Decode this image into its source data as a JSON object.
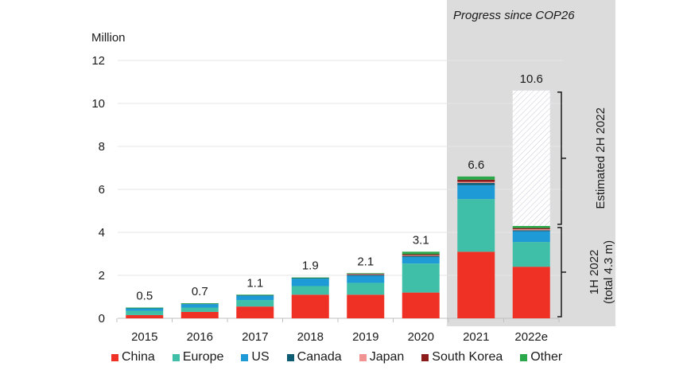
{
  "chart_data": {
    "type": "bar",
    "stacked": true,
    "title": "",
    "ylabel": "Million",
    "xlabel": "",
    "ylim": [
      0,
      12
    ],
    "yticks": [
      0,
      2,
      4,
      6,
      8,
      10,
      12
    ],
    "grid": true,
    "categories": [
      "2015",
      "2016",
      "2017",
      "2018",
      "2019",
      "2020",
      "2021",
      "2022e"
    ],
    "totals_labels": [
      "0.5",
      "0.7",
      "1.1",
      "1.9",
      "2.1",
      "3.1",
      "6.6",
      "10.6"
    ],
    "series": [
      {
        "name": "China",
        "color": "#ee3124",
        "values": [
          0.15,
          0.3,
          0.55,
          1.1,
          1.1,
          1.2,
          3.1,
          2.4
        ]
      },
      {
        "name": "Europe",
        "color": "#40bfa8",
        "values": [
          0.2,
          0.2,
          0.3,
          0.4,
          0.55,
          1.35,
          2.45,
          1.15
        ]
      },
      {
        "name": "US",
        "color": "#1e9ad6",
        "values": [
          0.12,
          0.16,
          0.2,
          0.35,
          0.33,
          0.3,
          0.65,
          0.5
        ]
      },
      {
        "name": "Canada",
        "color": "#0e5c73",
        "values": [
          0.02,
          0.03,
          0.03,
          0.04,
          0.05,
          0.05,
          0.1,
          0.05
        ]
      },
      {
        "name": "Japan",
        "color": "#f19393",
        "values": [
          0.0,
          0.0,
          0.0,
          0.0,
          0.02,
          0.03,
          0.05,
          0.05
        ]
      },
      {
        "name": "South Korea",
        "color": "#8b1a1a",
        "values": [
          0.0,
          0.0,
          0.0,
          0.0,
          0.03,
          0.05,
          0.1,
          0.05
        ]
      },
      {
        "name": "Other",
        "color": "#2aa84a",
        "values": [
          0.01,
          0.01,
          0.02,
          0.01,
          0.02,
          0.12,
          0.15,
          0.1
        ]
      },
      {
        "name": "Estimated 2H 2022",
        "pattern": "hatch",
        "values": [
          0,
          0,
          0,
          0,
          0,
          0,
          0,
          6.3
        ]
      }
    ],
    "shaded_region": {
      "categories": [
        "2021",
        "2022e"
      ],
      "label": "Progress since COP26",
      "color": "#dcdcdc"
    },
    "annotations": [
      {
        "text": "Estimated 2H 2022",
        "applies_to": "2022e",
        "range": [
          4.3,
          10.6
        ]
      },
      {
        "text_lines": [
          "1H 2022",
          "(total 4.3 m)"
        ],
        "applies_to": "2022e",
        "range": [
          0,
          4.3
        ]
      }
    ],
    "legend": {
      "placement": "bottom",
      "entries": [
        "China",
        "Europe",
        "US",
        "Canada",
        "Japan",
        "South Korea",
        "Other"
      ]
    }
  }
}
